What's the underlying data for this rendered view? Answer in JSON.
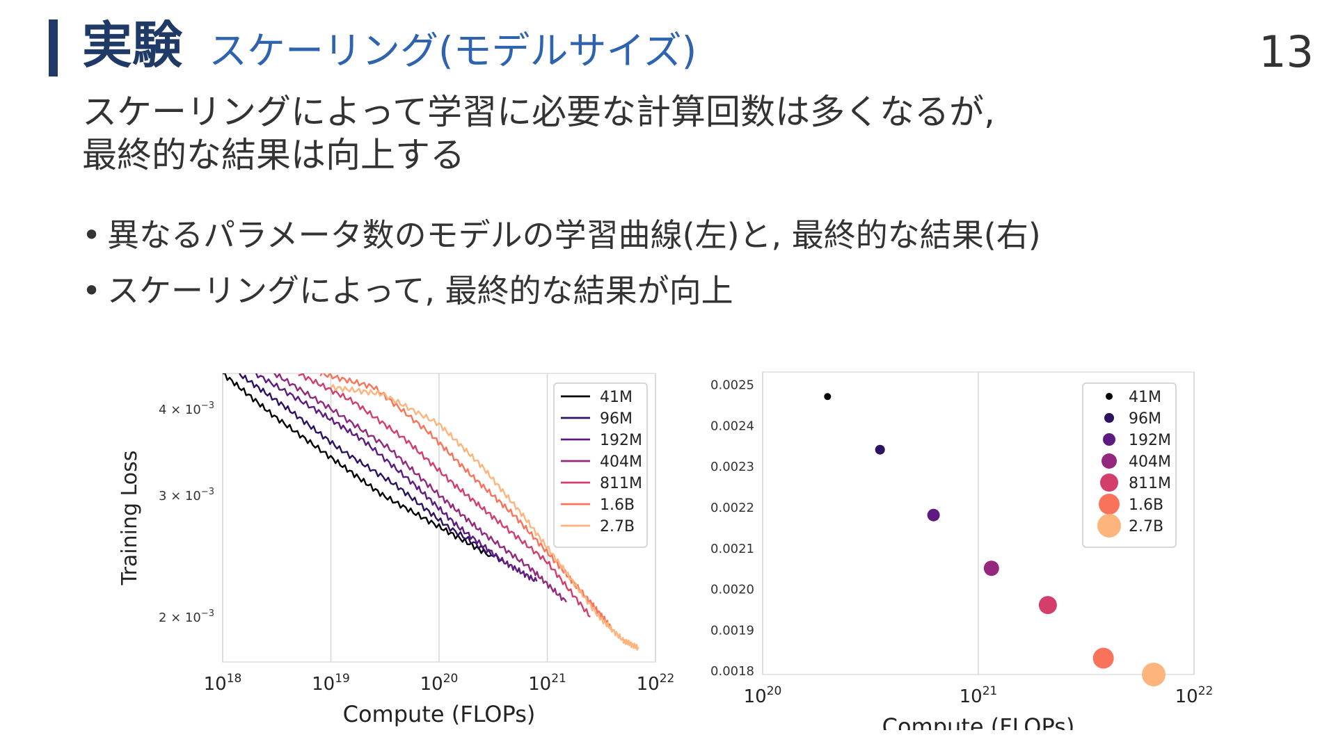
{
  "slide": {
    "title": "実験",
    "subtitle": "スケーリング(モデルサイズ)",
    "page_number": "13",
    "lead_lines": [
      "スケーリングによって学習に必要な計算回数は多くなるが,",
      "最終的な結果は向上する"
    ],
    "bullets": [
      "異なるパラメータ数のモデルの学習曲線(左)と, 最終的な結果(右)",
      "スケーリングによって, 最終的な結果が向上"
    ],
    "bullet_marker": "•"
  },
  "colors": {
    "title": "#1f3a66",
    "subtitle": "#2e63b0",
    "series": [
      "#000004",
      "#2b115e",
      "#5d1a80",
      "#93287c",
      "#d33e6a",
      "#f9735a",
      "#fdb47d"
    ]
  },
  "chart_data": [
    {
      "type": "line",
      "xlabel": "Compute (FLOPs)",
      "ylabel": "Training Loss",
      "xscale": "log",
      "yscale": "log",
      "xlim": [
        1e+18,
        1e+22
      ],
      "ylim": [
        0.00172,
        0.0045
      ],
      "x_ticks": [
        {
          "value": 1e+18,
          "base": "10",
          "exp": "18"
        },
        {
          "value": 1e+19,
          "base": "10",
          "exp": "19"
        },
        {
          "value": 1e+20,
          "base": "10",
          "exp": "20"
        },
        {
          "value": 1e+21,
          "base": "10",
          "exp": "21"
        },
        {
          "value": 1e+22,
          "base": "10",
          "exp": "22"
        }
      ],
      "y_ticks": [
        {
          "value": 0.004,
          "label": "4 × 10",
          "exp": "−3"
        },
        {
          "value": 0.003,
          "label": "3 × 10",
          "exp": "−3"
        },
        {
          "value": 0.002,
          "label": "2 × 10",
          "exp": "−3"
        }
      ],
      "grid": "vertical",
      "legend": "top-right",
      "series": [
        {
          "name": "41M",
          "points": [
            [
              1e+18,
              0.0045
            ],
            [
              3e+18,
              0.0039
            ],
            [
              1e+19,
              0.0034
            ],
            [
              3e+19,
              0.003
            ],
            [
              1e+20,
              0.0027
            ],
            [
              3e+20,
              0.00245
            ]
          ]
        },
        {
          "name": "96M",
          "points": [
            [
              1.4e+18,
              0.0045
            ],
            [
              4e+18,
              0.004
            ],
            [
              1.2e+19,
              0.0035
            ],
            [
              4e+19,
              0.0031
            ],
            [
              1.2e+20,
              0.0027
            ],
            [
              4e+20,
              0.0024
            ]
          ]
        },
        {
          "name": "192M",
          "points": [
            [
              2e+18,
              0.0045
            ],
            [
              7e+18,
              0.004
            ],
            [
              2e+19,
              0.0036
            ],
            [
              6e+19,
              0.0031
            ],
            [
              1.5e+20,
              0.0027
            ],
            [
              4e+20,
              0.0024
            ],
            [
              8e+20,
              0.00225
            ]
          ]
        },
        {
          "name": "404M",
          "points": [
            [
              3e+18,
              0.0045
            ],
            [
              1e+19,
              0.004
            ],
            [
              3.5e+19,
              0.0035
            ],
            [
              1e+20,
              0.003
            ],
            [
              2.5e+20,
              0.00265
            ],
            [
              7e+20,
              0.00235
            ],
            [
              1.5e+21,
              0.0021
            ]
          ]
        },
        {
          "name": "811M",
          "points": [
            [
              5e+18,
              0.0045
            ],
            [
              1.6e+19,
              0.0041
            ],
            [
              5e+19,
              0.0036
            ],
            [
              1.4e+20,
              0.0031
            ],
            [
              3.5e+20,
              0.00275
            ],
            [
              1e+21,
              0.0024
            ],
            [
              2.5e+21,
              0.002
            ]
          ]
        },
        {
          "name": "1.6B",
          "points": [
            [
              8e+18,
              0.0045
            ],
            [
              2.5e+19,
              0.0043
            ],
            [
              8e+19,
              0.0037
            ],
            [
              2e+20,
              0.0032
            ],
            [
              5e+20,
              0.0028
            ],
            [
              1.2e+21,
              0.0024
            ],
            [
              2.5e+21,
              0.0021
            ],
            [
              4e+21,
              0.00192
            ]
          ]
        },
        {
          "name": "2.7B",
          "points": [
            [
              1e+19,
              0.0043
            ],
            [
              3e+19,
              0.0042
            ],
            [
              1e+20,
              0.0038
            ],
            [
              2.5e+20,
              0.0033
            ],
            [
              6e+20,
              0.0028
            ],
            [
              1.4e+21,
              0.00235
            ],
            [
              3e+21,
              0.002
            ],
            [
              5e+21,
              0.00185
            ],
            [
              7e+21,
              0.0018
            ]
          ]
        }
      ]
    },
    {
      "type": "scatter",
      "xlabel": "Compute (FLOPs)",
      "xscale": "log",
      "xlim": [
        1e+20,
        1e+22
      ],
      "ylim": [
        0.00179,
        0.00253
      ],
      "x_ticks": [
        {
          "value": 1e+20,
          "base": "10",
          "exp": "20"
        },
        {
          "value": 1e+21,
          "base": "10",
          "exp": "21"
        },
        {
          "value": 1e+22,
          "base": "10",
          "exp": "22"
        }
      ],
      "y_ticks": [
        "0.0025",
        "0.0024",
        "0.0023",
        "0.0022",
        "0.0021",
        "0.0020",
        "0.0019",
        "0.0018"
      ],
      "grid": "vertical",
      "legend": "top-right",
      "series": [
        {
          "name": "41M",
          "x": 2e+20,
          "y": 0.00247
        },
        {
          "name": "96M",
          "x": 3.5e+20,
          "y": 0.00234
        },
        {
          "name": "192M",
          "x": 6.2e+20,
          "y": 0.00218
        },
        {
          "name": "404M",
          "x": 1.15e+21,
          "y": 0.00205
        },
        {
          "name": "811M",
          "x": 2.1e+21,
          "y": 0.00196
        },
        {
          "name": "1.6B",
          "x": 3.8e+21,
          "y": 0.00183
        },
        {
          "name": "2.7B",
          "x": 6.5e+21,
          "y": 0.00179
        }
      ]
    }
  ]
}
